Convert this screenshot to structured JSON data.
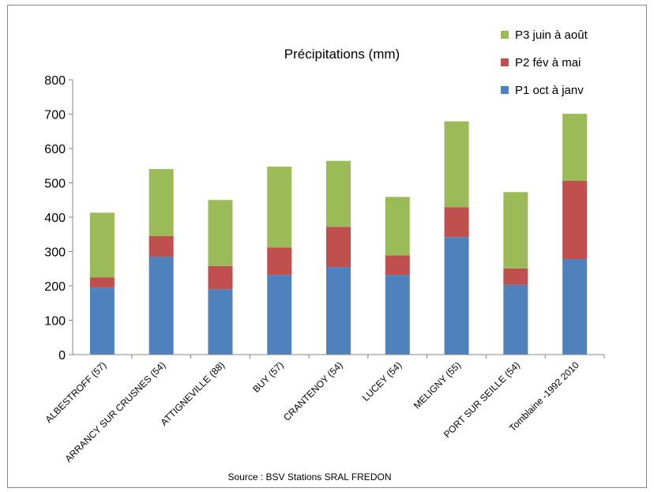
{
  "chart_data": {
    "type": "bar",
    "stacked": true,
    "title": "Précipitations (mm)",
    "source": "Source : BSV Stations SRAL FREDON",
    "categories": [
      "ALBESTROFF (57)",
      "ARRANCY SUR CRUSNES (54)",
      "ATTIGNEVILLE (88)",
      "BUY (57)",
      "CRANTENOY (54)",
      "LUCEY (54)",
      "MELIGNY (55)",
      "PORT SUR SEILLE (54)",
      "Tomblaine -1992 2010"
    ],
    "series": [
      {
        "name": "P1 oct à janv",
        "color": "#4f81bd",
        "values": [
          195,
          285,
          190,
          232,
          255,
          232,
          342,
          203,
          278
        ]
      },
      {
        "name": "P2 fév à mai",
        "color": "#c0504d",
        "values": [
          30,
          60,
          68,
          80,
          117,
          57,
          87,
          48,
          228
        ]
      },
      {
        "name": "P3 juin à août",
        "color": "#9bbb59",
        "values": [
          188,
          195,
          192,
          235,
          192,
          170,
          250,
          222,
          195
        ]
      }
    ],
    "legend_order": [
      "P3 juin à août",
      "P2 fév à mai",
      "P1 oct à janv"
    ],
    "legend_position": "top-right",
    "ylim": [
      0,
      800
    ],
    "yticks": [
      0,
      100,
      200,
      300,
      400,
      500,
      600,
      700,
      800
    ],
    "grid": false
  }
}
